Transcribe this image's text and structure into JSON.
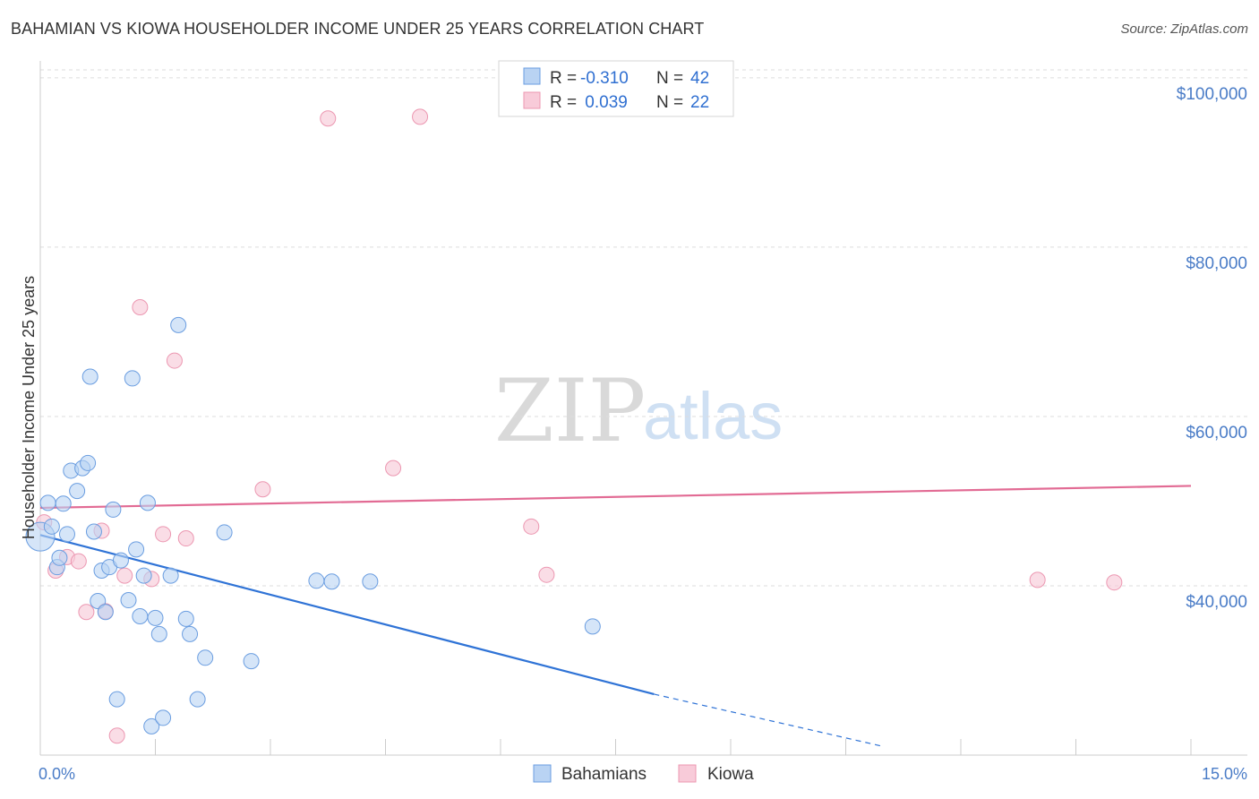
{
  "title": "BAHAMIAN VS KIOWA HOUSEHOLDER INCOME UNDER 25 YEARS CORRELATION CHART",
  "source": "Source: ZipAtlas.com",
  "watermark": {
    "part1": "ZIP",
    "part2": "atlas"
  },
  "colors": {
    "bahamians_fill": "#b9d3f3",
    "bahamians_stroke": "#6a9de0",
    "bahamians_line": "#2f73d6",
    "kiowa_fill": "#f8cbd9",
    "kiowa_stroke": "#ec97b1",
    "kiowa_line": "#e26b94",
    "tick": "#4a7cc7",
    "grid": "#dddddd"
  },
  "legend_top": {
    "rows": [
      {
        "r_label": "R =",
        "r_value": "-0.310",
        "n_label": "N =",
        "n_value": "42"
      },
      {
        "r_label": "R =",
        "r_value": " 0.039",
        "n_label": "N =",
        "n_value": "22"
      }
    ]
  },
  "legend_bottom": {
    "items": [
      {
        "label": "Bahamians"
      },
      {
        "label": "Kiowa"
      }
    ]
  },
  "chart_data": {
    "type": "scatter",
    "title": "BAHAMIAN VS KIOWA HOUSEHOLDER INCOME UNDER 25 YEARS CORRELATION CHART",
    "xlabel": "",
    "ylabel": "Householder Income Under 25 years",
    "xlim": [
      0,
      15
    ],
    "ylim": [
      20000,
      102000
    ],
    "x_tick_labels": [
      "0.0%",
      "15.0%"
    ],
    "y_ticks": [
      40000,
      60000,
      80000,
      100000
    ],
    "y_tick_labels": [
      "$40,000",
      "$60,000",
      "$80,000",
      "$100,000"
    ],
    "grid": true,
    "legend_position": "top-center",
    "series": [
      {
        "name": "Bahamians",
        "R": -0.31,
        "N": 42,
        "points": [
          [
            0.0,
            45800
          ],
          [
            0.1,
            49800
          ],
          [
            0.15,
            47000
          ],
          [
            0.22,
            42200
          ],
          [
            0.25,
            43300
          ],
          [
            0.3,
            49700
          ],
          [
            0.35,
            46100
          ],
          [
            0.4,
            53600
          ],
          [
            0.48,
            51200
          ],
          [
            0.55,
            53900
          ],
          [
            0.62,
            54500
          ],
          [
            0.65,
            64700
          ],
          [
            0.7,
            46400
          ],
          [
            0.75,
            38200
          ],
          [
            0.8,
            41800
          ],
          [
            0.85,
            36900
          ],
          [
            0.9,
            42200
          ],
          [
            0.95,
            49000
          ],
          [
            1.0,
            26600
          ],
          [
            1.05,
            43000
          ],
          [
            1.15,
            38300
          ],
          [
            1.2,
            64500
          ],
          [
            1.25,
            44300
          ],
          [
            1.3,
            36400
          ],
          [
            1.35,
            41200
          ],
          [
            1.4,
            49800
          ],
          [
            1.45,
            23400
          ],
          [
            1.5,
            36200
          ],
          [
            1.55,
            34300
          ],
          [
            1.6,
            24400
          ],
          [
            1.7,
            41200
          ],
          [
            1.8,
            70800
          ],
          [
            1.9,
            36100
          ],
          [
            1.95,
            34300
          ],
          [
            2.05,
            26600
          ],
          [
            2.15,
            31500
          ],
          [
            2.4,
            46300
          ],
          [
            2.75,
            31100
          ],
          [
            3.6,
            40600
          ],
          [
            3.8,
            40500
          ],
          [
            4.3,
            40500
          ],
          [
            7.2,
            35200
          ]
        ],
        "trend": {
          "x_start": 0.0,
          "y_start": 46000,
          "x_solid_end": 8.0,
          "y_solid_end": 27200,
          "x_dash_end": 11.0,
          "y_dash_end": 21000
        }
      },
      {
        "name": "Kiowa",
        "R": 0.039,
        "N": 22,
        "points": [
          [
            0.05,
            47500
          ],
          [
            0.2,
            41800
          ],
          [
            0.35,
            43400
          ],
          [
            0.5,
            42900
          ],
          [
            0.6,
            36900
          ],
          [
            0.8,
            46500
          ],
          [
            0.85,
            37000
          ],
          [
            1.0,
            22300
          ],
          [
            1.1,
            41200
          ],
          [
            1.3,
            72900
          ],
          [
            1.45,
            40800
          ],
          [
            1.6,
            46100
          ],
          [
            1.75,
            66600
          ],
          [
            1.9,
            45600
          ],
          [
            2.9,
            51400
          ],
          [
            3.75,
            95200
          ],
          [
            4.6,
            53900
          ],
          [
            4.95,
            95400
          ],
          [
            6.4,
            47000
          ],
          [
            6.6,
            41300
          ],
          [
            13.0,
            40700
          ],
          [
            14.0,
            40400
          ]
        ],
        "trend": {
          "x_start": 0.0,
          "y_start": 49200,
          "x_end": 15.0,
          "y_end": 51800
        }
      }
    ]
  }
}
